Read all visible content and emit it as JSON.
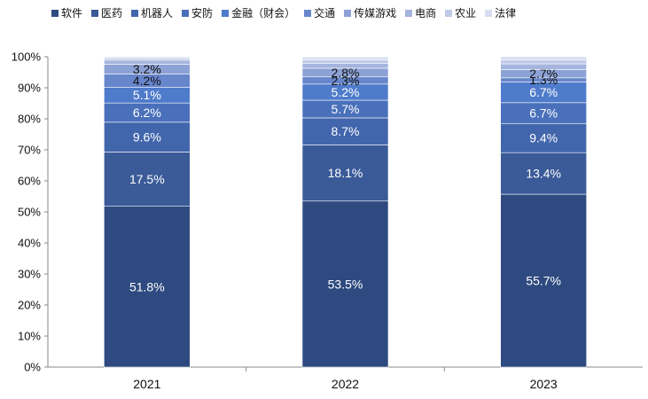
{
  "chart_data": {
    "type": "bar",
    "stacked": true,
    "categories": [
      "2021",
      "2022",
      "2023"
    ],
    "ylim": [
      0,
      100
    ],
    "yticks": [
      "0%",
      "10%",
      "20%",
      "30%",
      "40%",
      "50%",
      "60%",
      "70%",
      "80%",
      "90%",
      "100%"
    ],
    "grid": false,
    "legend_position": "top",
    "series": [
      {
        "name": "软件",
        "color": "#2E4A80",
        "values": [
          51.8,
          53.5,
          55.7
        ],
        "labels": [
          "51.8%",
          "53.5%",
          "55.7%"
        ]
      },
      {
        "name": "医药",
        "color": "#3A5A98",
        "values": [
          17.5,
          18.1,
          13.4
        ],
        "labels": [
          "17.5%",
          "18.1%",
          "13.4%"
        ]
      },
      {
        "name": "机器人",
        "color": "#4266AC",
        "values": [
          9.6,
          8.7,
          9.4
        ],
        "labels": [
          "9.6%",
          "8.7%",
          "9.4%"
        ]
      },
      {
        "name": "安防",
        "color": "#4A70BB",
        "values": [
          6.2,
          5.7,
          6.7
        ],
        "labels": [
          "6.2%",
          "5.7%",
          "6.7%"
        ]
      },
      {
        "name": "金融（财会）",
        "color": "#4F7BCB",
        "values": [
          5.1,
          5.2,
          6.7
        ],
        "labels": [
          "5.1%",
          "5.2%",
          "6.7%"
        ]
      },
      {
        "name": "交通",
        "color": "#6786CC",
        "values": [
          4.2,
          2.3,
          1.3
        ],
        "labels": [
          "4.2%",
          "2.3%",
          "1.3%"
        ]
      },
      {
        "name": "传媒游戏",
        "color": "#8CA2D6",
        "values": [
          3.2,
          2.8,
          2.7
        ],
        "labels": [
          "3.2%",
          "2.8%",
          "2.7%"
        ]
      },
      {
        "name": "电商",
        "color": "#A5B5DE",
        "values": [
          1.3,
          1.6,
          1.8
        ],
        "labels": [
          "",
          "",
          ""
        ]
      },
      {
        "name": "农业",
        "color": "#BFCBE8",
        "values": [
          0.6,
          1.1,
          1.3
        ],
        "labels": [
          "",
          "",
          ""
        ]
      },
      {
        "name": "法律",
        "color": "#D6DEF1",
        "values": [
          0.5,
          0.9,
          1.0
        ],
        "labels": [
          "",
          "",
          ""
        ]
      }
    ]
  }
}
